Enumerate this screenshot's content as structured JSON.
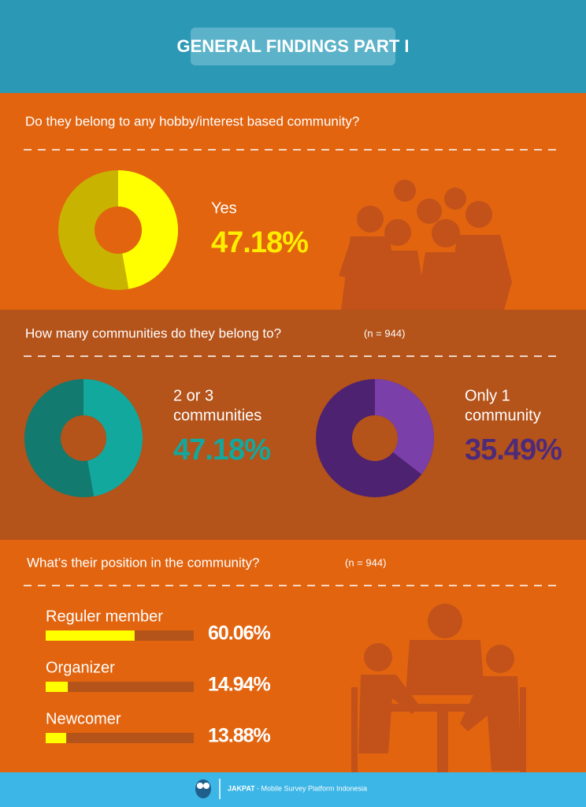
{
  "header": {
    "title": "GENERAL FINDINGS PART I"
  },
  "sections": [
    {
      "question": "Do they belong to any hobby/interest based community?",
      "items": [
        {
          "label_lines": [
            "Yes"
          ],
          "value": 47.18,
          "value_label": "47.18%"
        }
      ]
    },
    {
      "question": "How many communities do they belong to?",
      "n": "(n = 944)",
      "items": [
        {
          "label_lines": [
            "2 or 3",
            "communities"
          ],
          "value": 47.18,
          "value_label": "47.18%"
        },
        {
          "label_lines": [
            "Only 1",
            "community"
          ],
          "value": 35.49,
          "value_label": "35.49%"
        }
      ]
    },
    {
      "question": "What’s their position in the community?",
      "n": "(n = 944)",
      "bars": [
        {
          "label": "Reguler member",
          "value": 60.06,
          "value_label": "60.06%"
        },
        {
          "label": "Organizer",
          "value": 14.94,
          "value_label": "14.94%"
        },
        {
          "label": "Newcomer",
          "value": 13.88,
          "value_label": "13.88%"
        }
      ]
    }
  ],
  "footer": {
    "brand": "JAKPAT",
    "tagline": "- Mobile Survey Platform Indonesia"
  }
}
